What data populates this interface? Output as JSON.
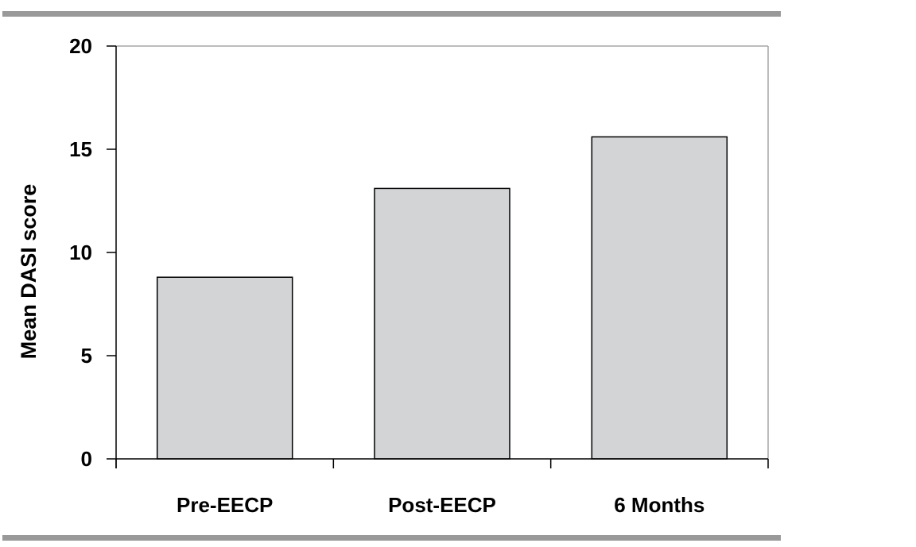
{
  "chart_data": {
    "type": "bar",
    "categories": [
      "Pre-EECP",
      "Post-EECP",
      "6 Months"
    ],
    "values": [
      8.8,
      13.1,
      15.6
    ],
    "title": "",
    "xlabel": "",
    "ylabel": "Mean DASI score",
    "ylim": [
      0,
      20
    ],
    "yticks": [
      0,
      5,
      10,
      15,
      20
    ],
    "grid": false,
    "legend": "none",
    "bar_color": "#d3d4d6",
    "bar_edge_color": "#000000",
    "frame_color": "#a6a6a6",
    "separator_color": "#999999"
  }
}
